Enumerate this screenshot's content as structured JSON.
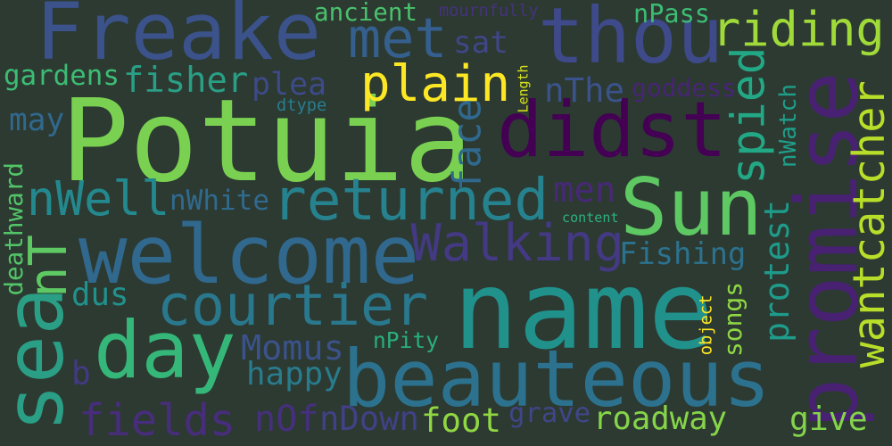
{
  "background": "#2c3a32",
  "words": [
    {
      "text": "Potuia",
      "color": "#7ad151"
    },
    {
      "text": "name",
      "color": "#21918c"
    },
    {
      "text": "promise",
      "color": "#482173"
    },
    {
      "text": "beauteous",
      "color": "#2c728e"
    },
    {
      "text": "didst",
      "color": "#440154"
    },
    {
      "text": "Freake",
      "color": "#3b528b"
    },
    {
      "text": "thou",
      "color": "#3e4a89"
    },
    {
      "text": "welcome",
      "color": "#31688e"
    },
    {
      "text": "Sun",
      "color": "#5ec962"
    },
    {
      "text": "day",
      "color": "#35b779"
    },
    {
      "text": "sea",
      "color": "#2a9f85"
    },
    {
      "text": "returned",
      "color": "#26828e"
    },
    {
      "text": "courtier",
      "color": "#2a788e"
    },
    {
      "text": "wantcatcher",
      "color": "#b8de29"
    },
    {
      "text": "plain",
      "color": "#fde725"
    },
    {
      "text": "riding",
      "color": "#a0da39"
    },
    {
      "text": "met",
      "color": "#355f8d"
    },
    {
      "text": "Walking",
      "color": "#443983"
    },
    {
      "text": "fields",
      "color": "#472d7b"
    },
    {
      "text": "spied",
      "color": "#22a884"
    },
    {
      "text": "protest",
      "color": "#1e9b8a"
    },
    {
      "text": "nWell",
      "color": "#23898e"
    },
    {
      "text": "face",
      "color": "#31688e"
    },
    {
      "text": "fisher",
      "color": "#2a9f85"
    },
    {
      "text": "Momus",
      "color": "#3b528b"
    },
    {
      "text": "happy",
      "color": "#287c8e"
    },
    {
      "text": "roadway",
      "color": "#86d549"
    },
    {
      "text": "give",
      "color": "#84d44b"
    },
    {
      "text": "foot",
      "color": "#90d743"
    },
    {
      "text": "Fishing",
      "color": "#2c728e"
    },
    {
      "text": "plea",
      "color": "#3e4a89"
    },
    {
      "text": "grave",
      "color": "#404688"
    },
    {
      "text": "nOf",
      "color": "#46307e"
    },
    {
      "text": "nDown",
      "color": "#424086"
    },
    {
      "text": "men",
      "color": "#482878"
    },
    {
      "text": "nT",
      "color": "#5ec962"
    },
    {
      "text": "dus",
      "color": "#21918c"
    },
    {
      "text": "may",
      "color": "#31688e"
    },
    {
      "text": "b",
      "color": "#443983"
    },
    {
      "text": "nWatch",
      "color": "#1f9e89"
    },
    {
      "text": "nThe",
      "color": "#3b528b"
    },
    {
      "text": "ancient",
      "color": "#4ac16d"
    },
    {
      "text": "nPass",
      "color": "#3dbc74"
    },
    {
      "text": "nWhite",
      "color": "#306a8e"
    },
    {
      "text": "sat",
      "color": "#404688"
    },
    {
      "text": "gardens",
      "color": "#3dbc74"
    },
    {
      "text": "goddess",
      "color": "#482475"
    },
    {
      "text": "deathward",
      "color": "#52c569"
    },
    {
      "text": "songs",
      "color": "#8fd744"
    },
    {
      "text": "nPity",
      "color": "#29af7f"
    },
    {
      "text": "mournfully",
      "color": "#46327e"
    },
    {
      "text": "dtype",
      "color": "#287d8e"
    },
    {
      "text": "Length",
      "color": "#d8e219"
    },
    {
      "text": "object",
      "color": "#fde725"
    },
    {
      "text": "content",
      "color": "#2db27d"
    }
  ]
}
